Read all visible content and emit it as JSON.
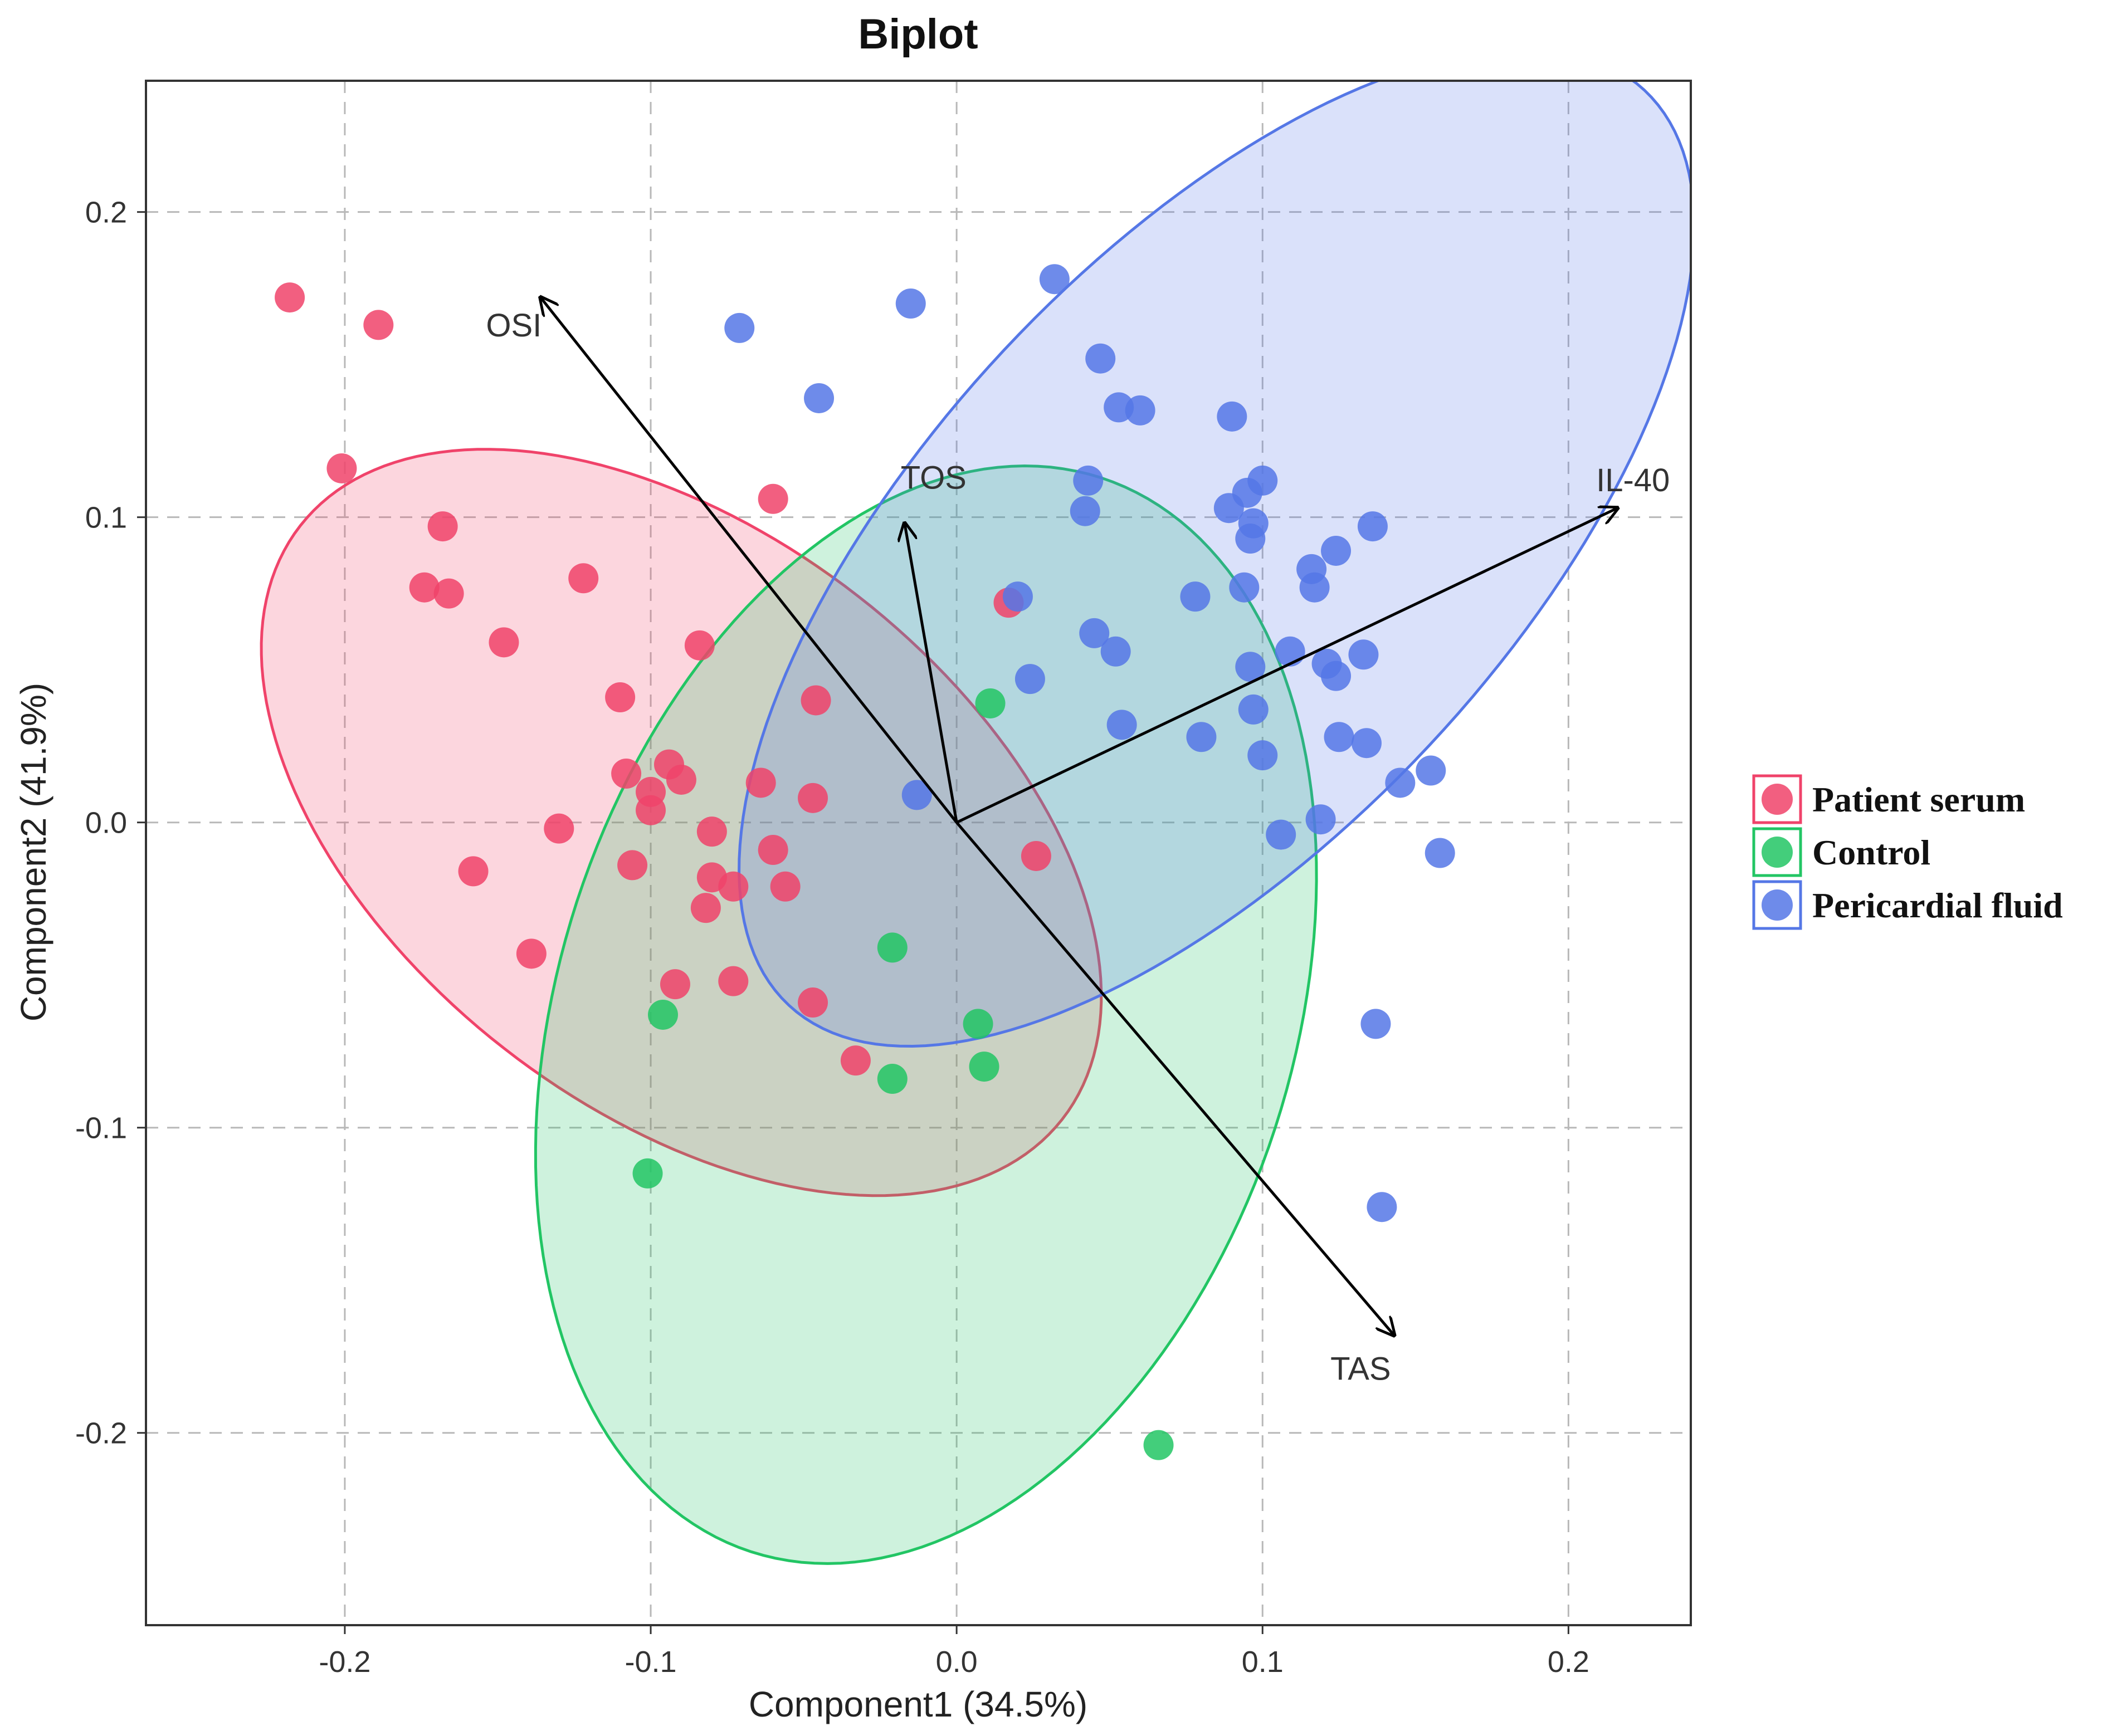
{
  "chart_data": {
    "type": "scatter",
    "title": "Biplot",
    "xlabel": "Component1 (34.5%)",
    "ylabel": "Component2 (41.9%)",
    "xlim": [
      -0.265,
      0.24
    ],
    "ylim": [
      -0.263,
      0.243
    ],
    "xticks": [
      -0.2,
      -0.1,
      0.0,
      0.1,
      0.2
    ],
    "xtick_labels": [
      "-0.2",
      "-0.1",
      "0.0",
      "0.1",
      "0.2"
    ],
    "yticks": [
      -0.2,
      -0.1,
      0.0,
      0.1,
      0.2
    ],
    "ytick_labels": [
      "-0.2",
      "-0.1",
      "0.0",
      "0.1",
      "0.2"
    ],
    "grid": true,
    "legend_position": "right",
    "series": [
      {
        "name": "Patient serum",
        "color": "#f0436a",
        "ellipse": {
          "cx": -0.09,
          "cy": 0.0,
          "rx": 0.158,
          "ry": 0.094,
          "angle_deg": -38
        },
        "points": [
          [
            -0.218,
            0.172
          ],
          [
            -0.189,
            0.163
          ],
          [
            -0.201,
            0.116
          ],
          [
            -0.168,
            0.097
          ],
          [
            -0.174,
            0.077
          ],
          [
            -0.166,
            0.075
          ],
          [
            -0.122,
            0.08
          ],
          [
            -0.148,
            0.059
          ],
          [
            -0.06,
            0.106
          ],
          [
            -0.084,
            0.058
          ],
          [
            -0.11,
            0.041
          ],
          [
            -0.046,
            0.04
          ],
          [
            -0.108,
            0.016
          ],
          [
            -0.094,
            0.019
          ],
          [
            -0.09,
            0.014
          ],
          [
            -0.064,
            0.013
          ],
          [
            -0.1,
            0.01
          ],
          [
            -0.1,
            0.004
          ],
          [
            -0.047,
            0.008
          ],
          [
            -0.13,
            -0.002
          ],
          [
            -0.08,
            -0.003
          ],
          [
            -0.106,
            -0.014
          ],
          [
            -0.06,
            -0.009
          ],
          [
            -0.158,
            -0.016
          ],
          [
            -0.08,
            -0.018
          ],
          [
            -0.073,
            -0.021
          ],
          [
            -0.056,
            -0.021
          ],
          [
            -0.082,
            -0.028
          ],
          [
            -0.139,
            -0.043
          ],
          [
            -0.092,
            -0.053
          ],
          [
            -0.073,
            -0.052
          ],
          [
            -0.047,
            -0.059
          ],
          [
            -0.033,
            -0.078
          ],
          [
            0.017,
            0.072
          ],
          [
            0.026,
            -0.011
          ]
        ]
      },
      {
        "name": "Control",
        "color": "#22c564",
        "ellipse": {
          "cx": -0.01,
          "cy": -0.063,
          "rx": 0.185,
          "ry": 0.12,
          "angle_deg": 72
        },
        "points": [
          [
            0.011,
            0.039
          ],
          [
            -0.021,
            -0.041
          ],
          [
            -0.096,
            -0.063
          ],
          [
            0.007,
            -0.066
          ],
          [
            0.009,
            -0.08
          ],
          [
            -0.021,
            -0.084
          ],
          [
            -0.101,
            -0.115
          ],
          [
            0.066,
            -0.204
          ]
        ]
      },
      {
        "name": "Pericardial fluid",
        "color": "#5577e6",
        "ellipse": {
          "cx": 0.085,
          "cy": 0.09,
          "rx": 0.205,
          "ry": 0.095,
          "angle_deg": 47
        },
        "points": [
          [
            -0.015,
            0.17
          ],
          [
            0.032,
            0.178
          ],
          [
            -0.071,
            0.162
          ],
          [
            -0.045,
            0.139
          ],
          [
            0.047,
            0.152
          ],
          [
            0.053,
            0.136
          ],
          [
            0.06,
            0.135
          ],
          [
            0.09,
            0.133
          ],
          [
            0.043,
            0.112
          ],
          [
            0.1,
            0.112
          ],
          [
            0.095,
            0.108
          ],
          [
            0.042,
            0.102
          ],
          [
            0.089,
            0.103
          ],
          [
            0.097,
            0.098
          ],
          [
            0.096,
            0.093
          ],
          [
            0.136,
            0.097
          ],
          [
            0.124,
            0.089
          ],
          [
            0.116,
            0.083
          ],
          [
            0.117,
            0.077
          ],
          [
            0.094,
            0.077
          ],
          [
            0.078,
            0.074
          ],
          [
            0.02,
            0.074
          ],
          [
            0.045,
            0.062
          ],
          [
            0.052,
            0.056
          ],
          [
            0.109,
            0.056
          ],
          [
            0.133,
            0.055
          ],
          [
            0.096,
            0.051
          ],
          [
            0.121,
            0.052
          ],
          [
            0.124,
            0.048
          ],
          [
            0.024,
            0.047
          ],
          [
            0.097,
            0.037
          ],
          [
            0.054,
            0.032
          ],
          [
            0.08,
            0.028
          ],
          [
            0.125,
            0.028
          ],
          [
            0.134,
            0.026
          ],
          [
            0.1,
            0.022
          ],
          [
            0.145,
            0.013
          ],
          [
            0.155,
            0.017
          ],
          [
            -0.013,
            0.009
          ],
          [
            0.119,
            0.001
          ],
          [
            0.106,
            -0.004
          ],
          [
            0.158,
            -0.01
          ],
          [
            0.137,
            -0.066
          ],
          [
            0.139,
            -0.126
          ]
        ]
      }
    ],
    "loadings": [
      {
        "name": "OSI",
        "x": -0.136,
        "y": 0.172
      },
      {
        "name": "TOS",
        "x": -0.017,
        "y": 0.098
      },
      {
        "name": "IL-40",
        "x": 0.216,
        "y": 0.103
      },
      {
        "name": "TAS",
        "x": 0.143,
        "y": -0.168
      }
    ],
    "origin": [
      0.0,
      0.0
    ]
  }
}
